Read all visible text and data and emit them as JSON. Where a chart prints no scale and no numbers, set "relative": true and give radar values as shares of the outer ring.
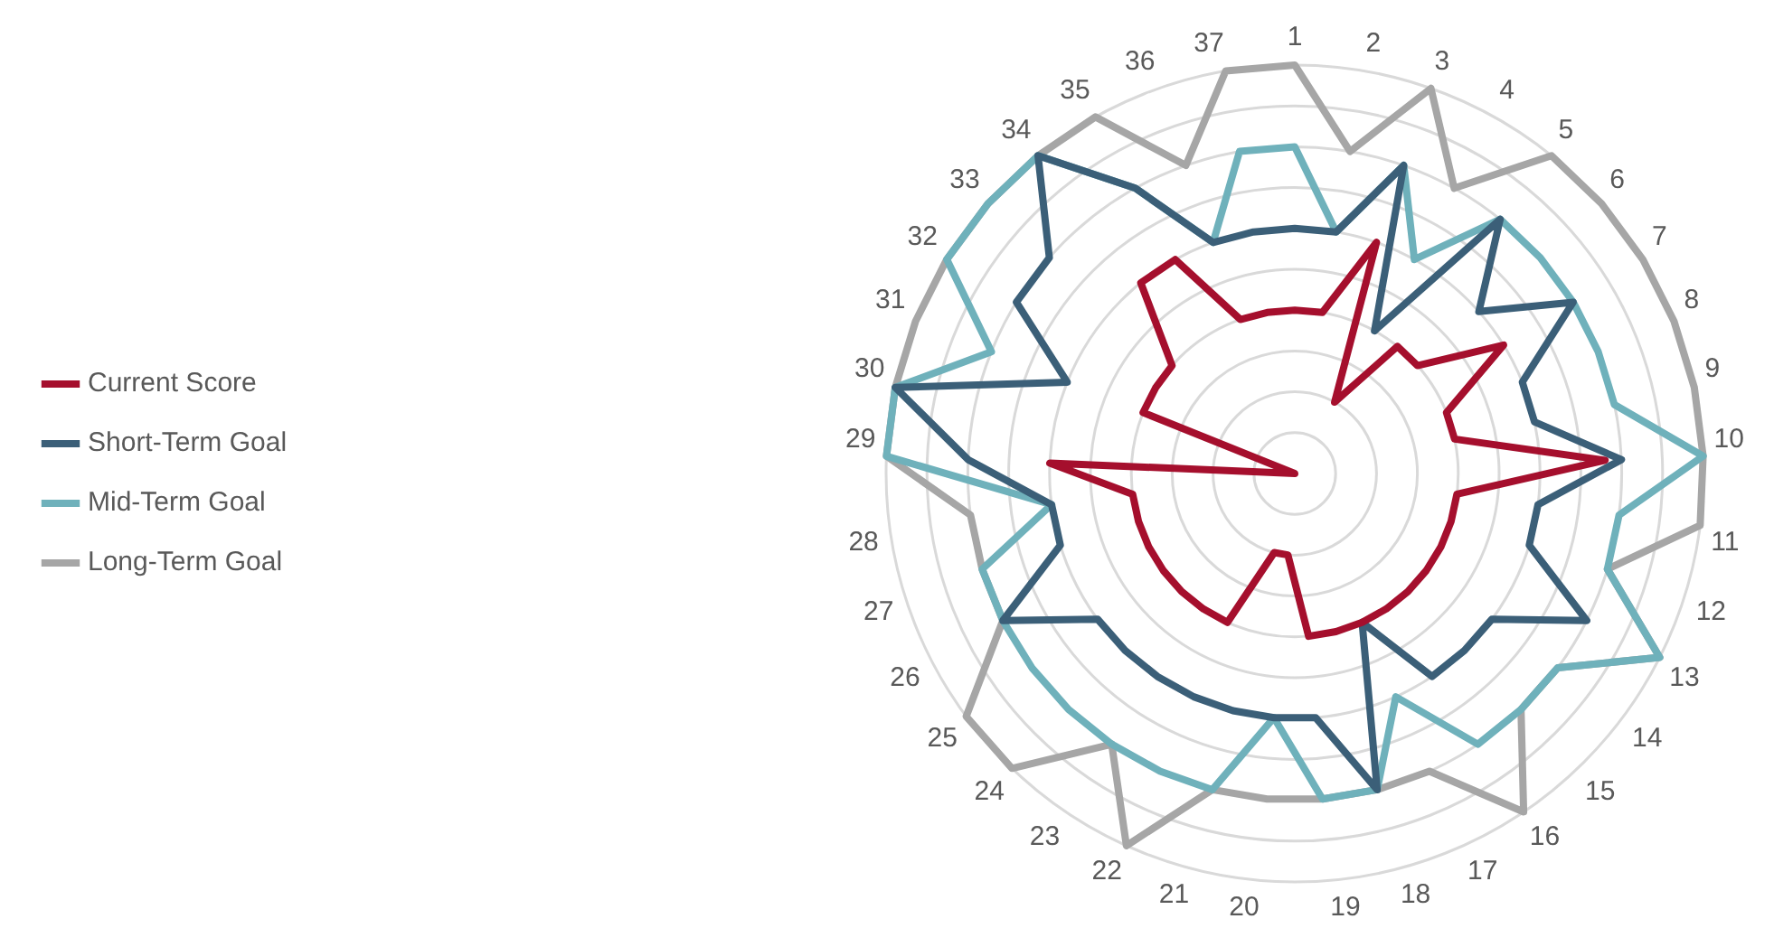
{
  "chart_data": {
    "type": "radar",
    "relative": true,
    "grid": true,
    "legend": "left",
    "categories": [
      "1",
      "2",
      "3",
      "4",
      "5",
      "6",
      "7",
      "8",
      "9",
      "10",
      "11",
      "12",
      "13",
      "14",
      "15",
      "16",
      "17",
      "18",
      "19",
      "20",
      "21",
      "22",
      "23",
      "24",
      "25",
      "26",
      "27",
      "28",
      "29",
      "30",
      "31",
      "32",
      "33",
      "34",
      "35",
      "36",
      "37"
    ],
    "series": [
      {
        "name": "Current Score",
        "color": "#a50f2d",
        "values": [
          0.4,
          0.4,
          0.6,
          0.2,
          0.4,
          0.4,
          0.6,
          0.4,
          0.4,
          0.76,
          0.4,
          0.4,
          0.4,
          0.4,
          0.4,
          0.4,
          0.4,
          0.4,
          0.4,
          0.2,
          0.2,
          0.4,
          0.4,
          0.4,
          0.4,
          0.4,
          0.4,
          0.4,
          0.6,
          0,
          0.4,
          0.4,
          0.4,
          0.6,
          0.6,
          0.4,
          0.4
        ]
      },
      {
        "name": "Short-Term Goal",
        "color": "#3b5f78",
        "values": [
          0.6,
          0.6,
          0.8,
          0.4,
          0.8,
          0.6,
          0.8,
          0.6,
          0.6,
          0.8,
          0.6,
          0.6,
          0.8,
          0.6,
          0.6,
          0.6,
          0.4,
          0.8,
          0.6,
          0.6,
          0.6,
          0.6,
          0.6,
          0.6,
          0.6,
          0.8,
          0.6,
          0.6,
          0.8,
          1,
          0.6,
          0.8,
          0.8,
          1,
          0.8,
          0.6,
          0.6
        ]
      },
      {
        "name": "Mid-Term Goal",
        "color": "#6fb1bb",
        "values": [
          0.8,
          0.6,
          0.8,
          0.6,
          0.8,
          0.8,
          0.8,
          0.8,
          0.8,
          1,
          0.8,
          0.8,
          1,
          0.8,
          0.8,
          0.8,
          0.6,
          0.8,
          0.8,
          0.6,
          0.8,
          0.8,
          0.8,
          0.8,
          0.8,
          0.8,
          0.8,
          0.6,
          1,
          1,
          0.8,
          1,
          1,
          1,
          0.8,
          0.6,
          0.8
        ]
      },
      {
        "name": "Long-Term Goal",
        "color": "#a6a6a6",
        "values": [
          1,
          0.8,
          1,
          0.8,
          1,
          1,
          1,
          1,
          1,
          1,
          1,
          0.8,
          1,
          0.8,
          0.8,
          1,
          0.8,
          0.8,
          0.8,
          0.8,
          0.8,
          1,
          0.8,
          1,
          1,
          0.8,
          0.8,
          0.8,
          1,
          1,
          1,
          1,
          1,
          1,
          1,
          0.8,
          1
        ]
      }
    ]
  }
}
